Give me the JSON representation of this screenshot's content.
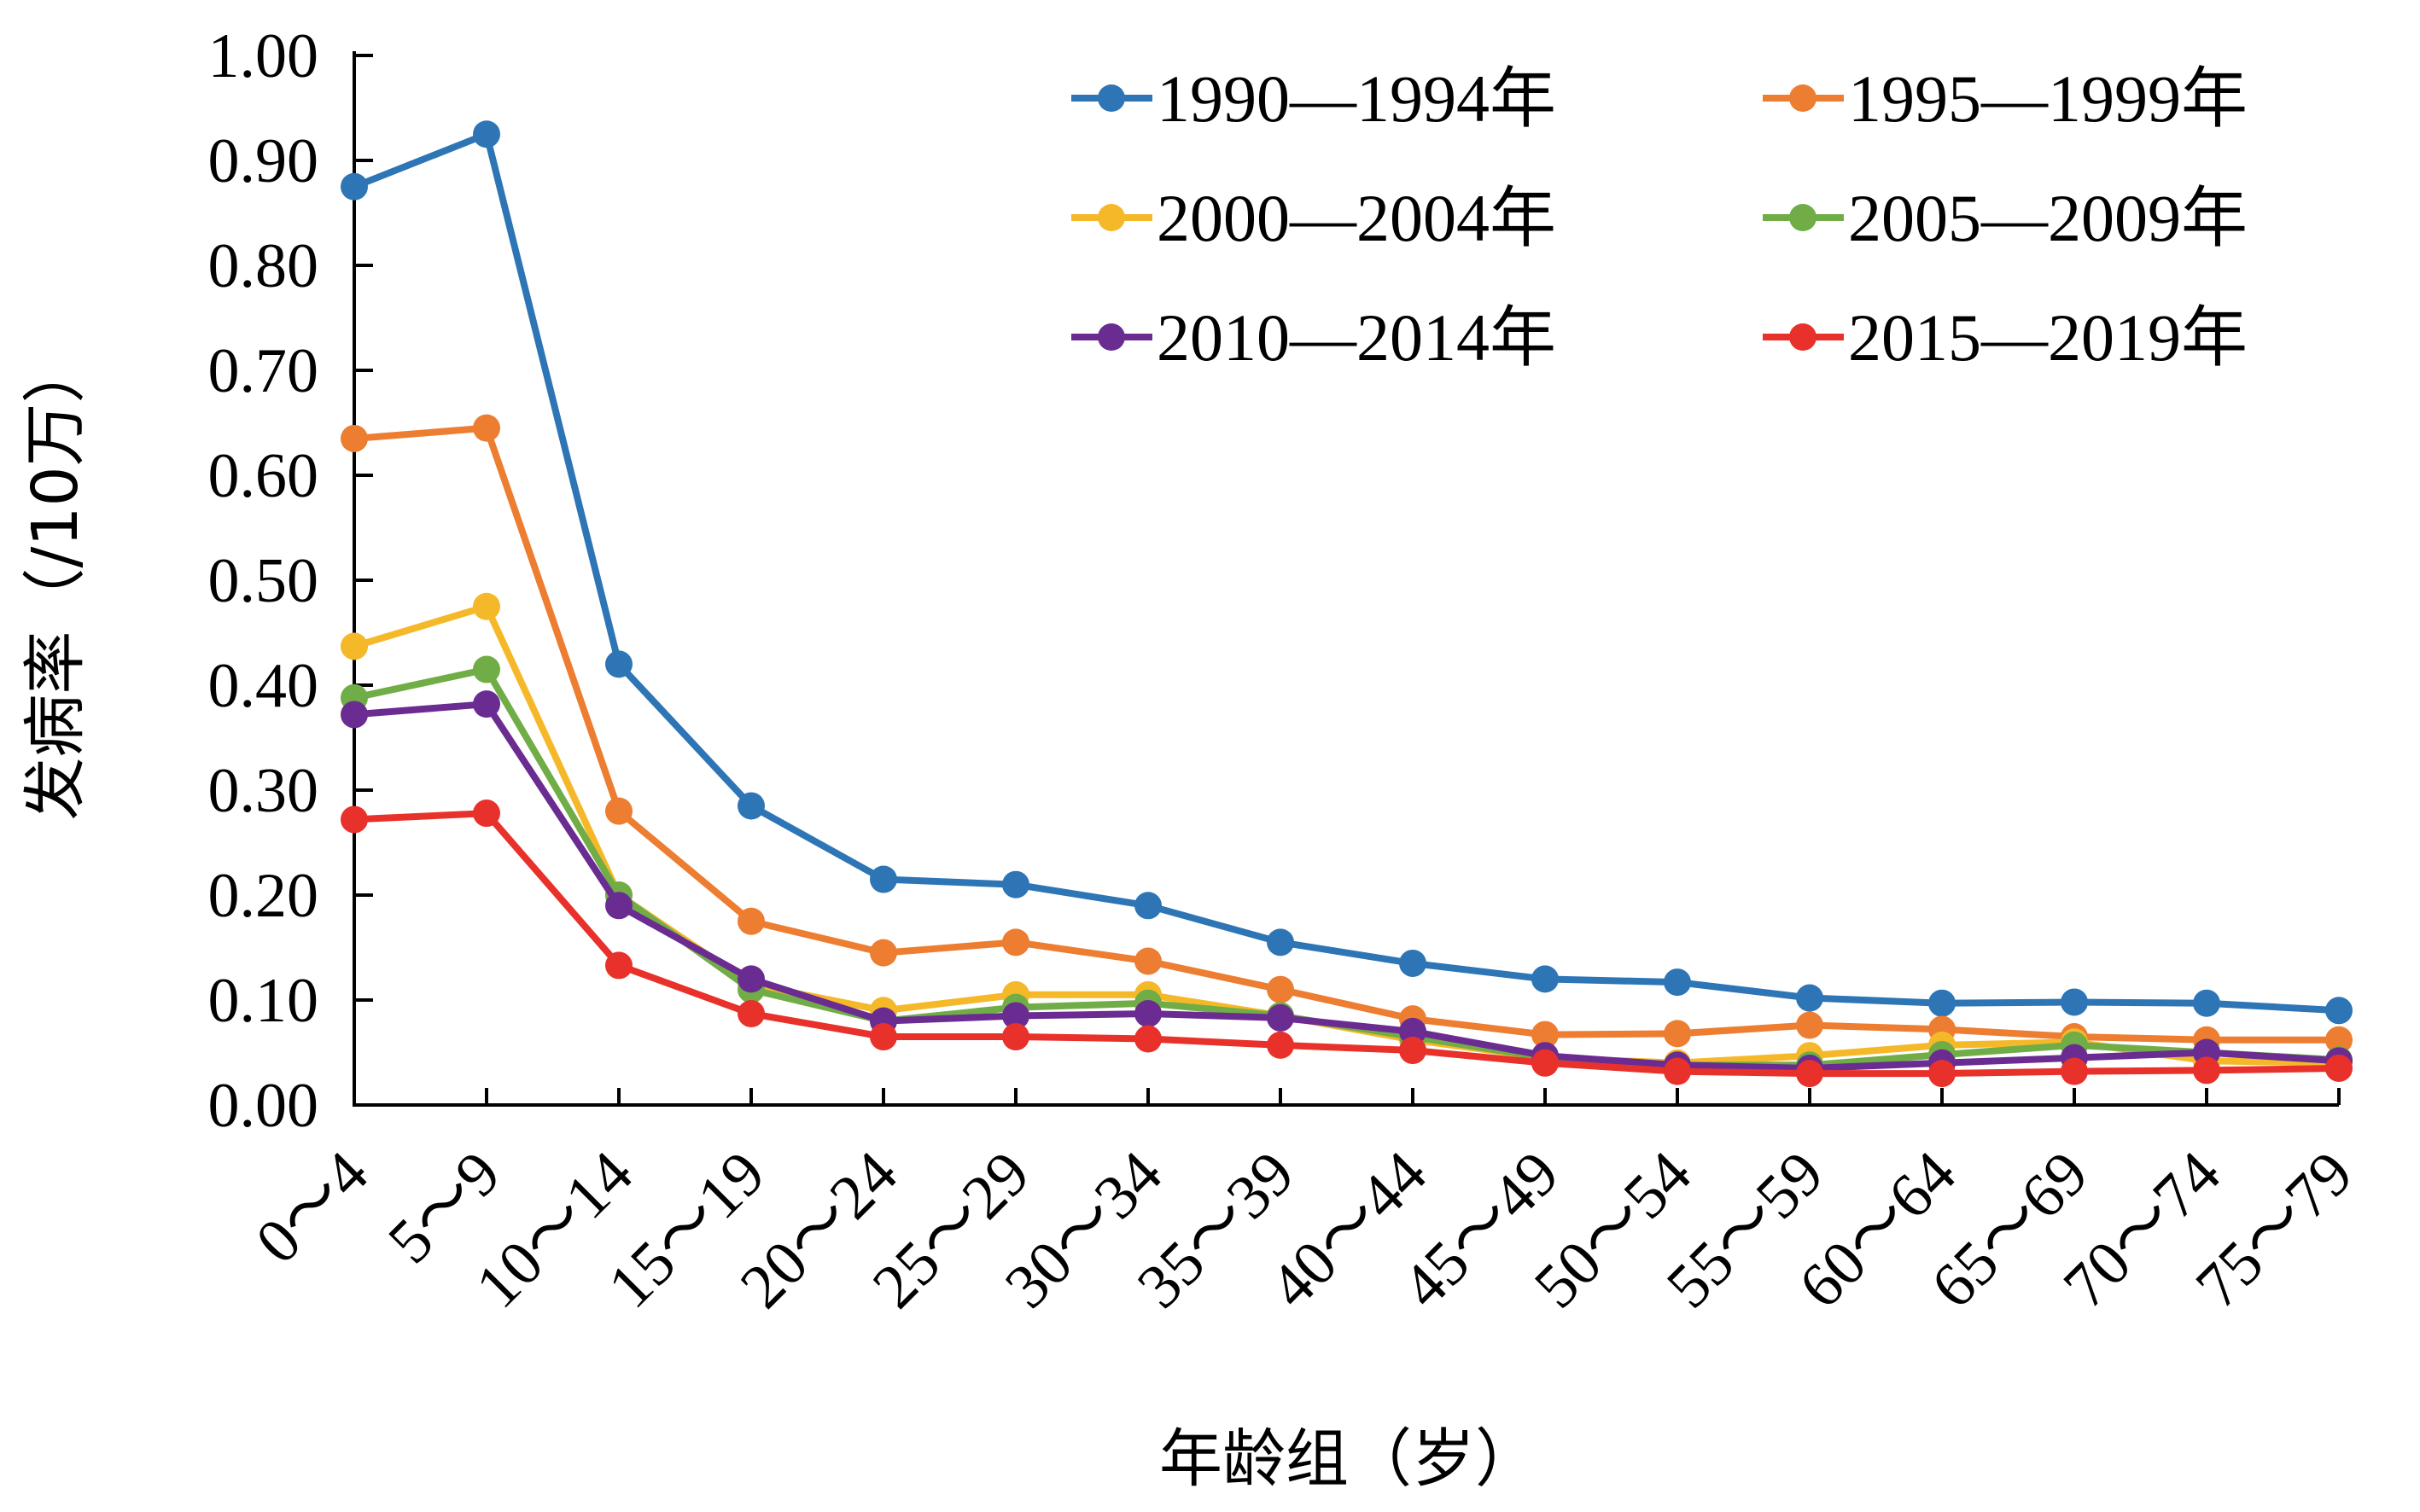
{
  "chart_data": {
    "type": "line",
    "title": "",
    "xlabel": "年龄组（岁）",
    "ylabel": "发病率（/10万）",
    "ylim": [
      0,
      1.0
    ],
    "y_ticks": [
      "0.00",
      "0.10",
      "0.20",
      "0.30",
      "0.40",
      "0.50",
      "0.60",
      "0.70",
      "0.80",
      "0.90",
      "1.00"
    ],
    "categories": [
      "0～4",
      "5～9",
      "10～14",
      "15～19",
      "20～24",
      "25～29",
      "30～34",
      "35～39",
      "40～44",
      "45～49",
      "50～54",
      "55～59",
      "60～64",
      "65～69",
      "70～74",
      "75～79"
    ],
    "grid": false,
    "legend_position": "top-right",
    "series": [
      {
        "name": "1990—1994年",
        "color": "#2E75B6",
        "values": [
          0.875,
          0.925,
          0.42,
          0.285,
          0.215,
          0.21,
          0.19,
          0.155,
          0.135,
          0.12,
          0.117,
          0.102,
          0.097,
          0.098,
          0.097,
          0.09
        ]
      },
      {
        "name": "1995—1999年",
        "color": "#ED7D31",
        "values": [
          0.635,
          0.645,
          0.28,
          0.175,
          0.145,
          0.155,
          0.137,
          0.11,
          0.082,
          0.067,
          0.068,
          0.076,
          0.072,
          0.065,
          0.062,
          0.062
        ]
      },
      {
        "name": "2000—2004年",
        "color": "#F5B829",
        "values": [
          0.437,
          0.475,
          0.2,
          0.115,
          0.09,
          0.105,
          0.105,
          0.085,
          0.062,
          0.045,
          0.04,
          0.047,
          0.057,
          0.06,
          0.042,
          0.04
        ]
      },
      {
        "name": "2005—2009年",
        "color": "#70AD47",
        "values": [
          0.388,
          0.415,
          0.2,
          0.11,
          0.08,
          0.093,
          0.097,
          0.085,
          0.065,
          0.045,
          0.038,
          0.038,
          0.048,
          0.057,
          0.05,
          0.043
        ]
      },
      {
        "name": "2010—2014年",
        "color": "#6B2C91",
        "values": [
          0.372,
          0.382,
          0.19,
          0.12,
          0.08,
          0.085,
          0.087,
          0.083,
          0.07,
          0.047,
          0.038,
          0.035,
          0.04,
          0.045,
          0.05,
          0.042
        ]
      },
      {
        "name": "2015—2019年",
        "color": "#E8312B",
        "values": [
          0.272,
          0.278,
          0.133,
          0.087,
          0.065,
          0.065,
          0.063,
          0.057,
          0.052,
          0.04,
          0.032,
          0.03,
          0.03,
          0.032,
          0.033,
          0.035
        ]
      }
    ]
  }
}
